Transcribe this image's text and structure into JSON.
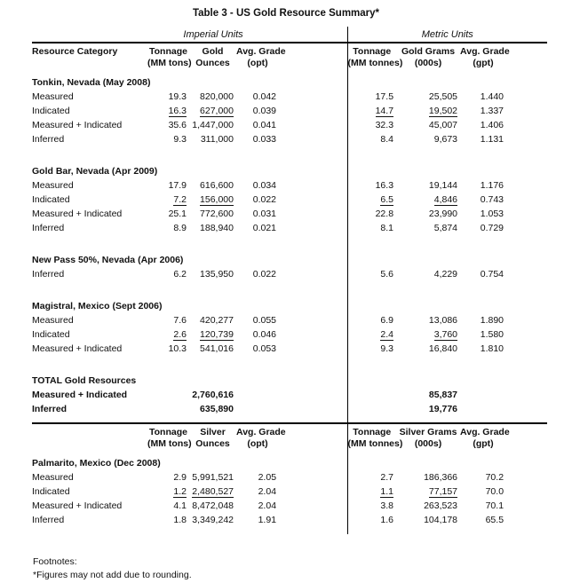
{
  "title": "Table 3 - US Gold Resource Summary*",
  "colors": {
    "text": "#111111",
    "rule": "#000000",
    "background": "#ffffff"
  },
  "unit_groups": [
    "Imperial Units",
    "Metric Units"
  ],
  "gold_header": {
    "category": "Resource Category",
    "cols": [
      [
        "Tonnage",
        "(MM tons)"
      ],
      [
        "Gold",
        "Ounces"
      ],
      [
        "Avg. Grade",
        "(opt)"
      ],
      [
        "Tonnage",
        "(MM tonnes)"
      ],
      [
        "Gold Grams",
        "(000s)"
      ],
      [
        "Avg. Grade",
        "(gpt)"
      ]
    ]
  },
  "silver_header": {
    "category": "",
    "cols": [
      [
        "Tonnage",
        "(MM tons)"
      ],
      [
        "Silver",
        "Ounces"
      ],
      [
        "Avg. Grade",
        "(opt)"
      ],
      [
        "Tonnage",
        "(MM tonnes)"
      ],
      [
        "Silver Grams",
        "(000s)"
      ],
      [
        "Avg. Grade",
        "(gpt)"
      ]
    ]
  },
  "gold_sections": [
    {
      "name": "Tonkin, Nevada (May 2008)",
      "rows": [
        {
          "label": "Measured",
          "values": [
            "19.3",
            "820,000",
            "0.042",
            "17.5",
            "25,505",
            "1.440"
          ]
        },
        {
          "label": "Indicated",
          "values": [
            "16.3",
            "627,000",
            "0.039",
            "14.7",
            "19,502",
            "1.337"
          ],
          "underline_cols": [
            0,
            1,
            3,
            4
          ]
        },
        {
          "label": "Measured + Indicated",
          "values": [
            "35.6",
            "1,447,000",
            "0.041",
            "32.3",
            "45,007",
            "1.406"
          ]
        },
        {
          "label": "Inferred",
          "values": [
            "9.3",
            "311,000",
            "0.033",
            "8.4",
            "9,673",
            "1.131"
          ]
        }
      ]
    },
    {
      "name": "Gold Bar, Nevada (Apr 2009)",
      "rows": [
        {
          "label": "Measured",
          "values": [
            "17.9",
            "616,600",
            "0.034",
            "16.3",
            "19,144",
            "1.176"
          ]
        },
        {
          "label": "Indicated",
          "values": [
            "7.2",
            "156,000",
            "0.022",
            "6.5",
            "4,846",
            "0.743"
          ],
          "underline_cols": [
            0,
            1,
            3,
            4
          ]
        },
        {
          "label": "Measured + Indicated",
          "values": [
            "25.1",
            "772,600",
            "0.031",
            "22.8",
            "23,990",
            "1.053"
          ]
        },
        {
          "label": "Inferred",
          "values": [
            "8.9",
            "188,940",
            "0.021",
            "8.1",
            "5,874",
            "0.729"
          ]
        }
      ]
    },
    {
      "name": "New Pass 50%, Nevada (Apr 2006)",
      "rows": [
        {
          "label": "Inferred",
          "values": [
            "6.2",
            "135,950",
            "0.022",
            "5.6",
            "4,229",
            "0.754"
          ]
        }
      ]
    },
    {
      "name": "Magistral, Mexico (Sept 2006)",
      "rows": [
        {
          "label": "Measured",
          "values": [
            "7.6",
            "420,277",
            "0.055",
            "6.9",
            "13,086",
            "1.890"
          ]
        },
        {
          "label": "Indicated",
          "values": [
            "2.6",
            "120,739",
            "0.046",
            "2.4",
            "3,760",
            "1.580"
          ],
          "underline_cols": [
            0,
            1,
            3,
            4
          ]
        },
        {
          "label": "Measured + Indicated",
          "values": [
            "10.3",
            "541,016",
            "0.053",
            "9.3",
            "16,840",
            "1.810"
          ]
        }
      ]
    },
    {
      "name": "TOTAL Gold Resources",
      "bold": true,
      "rows": [
        {
          "label": "Measured + Indicated",
          "values": [
            "",
            "2,760,616",
            "",
            "",
            "85,837",
            ""
          ],
          "bold": true
        },
        {
          "label": "Inferred",
          "values": [
            "",
            "635,890",
            "",
            "",
            "19,776",
            ""
          ],
          "bold": true
        }
      ]
    }
  ],
  "silver_sections": [
    {
      "name": "Palmarito, Mexico (Dec 2008)",
      "rows": [
        {
          "label": "Measured",
          "values": [
            "2.9",
            "5,991,521",
            "2.05",
            "2.7",
            "186,366",
            "70.2"
          ]
        },
        {
          "label": "Indicated",
          "values": [
            "1.2",
            "2,480,527",
            "2.04",
            "1.1",
            "77,157",
            "70.0"
          ],
          "underline_cols": [
            0,
            1,
            3,
            4
          ]
        },
        {
          "label": "Measured + Indicated",
          "values": [
            "4.1",
            "8,472,048",
            "2.04",
            "3.8",
            "263,523",
            "70.1"
          ]
        },
        {
          "label": "Inferred",
          "values": [
            "1.8",
            "3,349,242",
            "1.91",
            "1.6",
            "104,178",
            "65.5"
          ]
        }
      ]
    }
  ],
  "column_names": {
    "gold": [
      "tonnage-imperial",
      "gold-ounces",
      "avg-grade-opt",
      "tonnage-metric",
      "gold-grams",
      "avg-grade-gpt"
    ],
    "silver": [
      "tonnage-imperial",
      "silver-ounces",
      "avg-grade-opt",
      "tonnage-metric",
      "silver-grams",
      "avg-grade-gpt"
    ]
  },
  "footnotes": {
    "heading": "Footnotes:",
    "note": "*Figures may not add due to rounding."
  }
}
